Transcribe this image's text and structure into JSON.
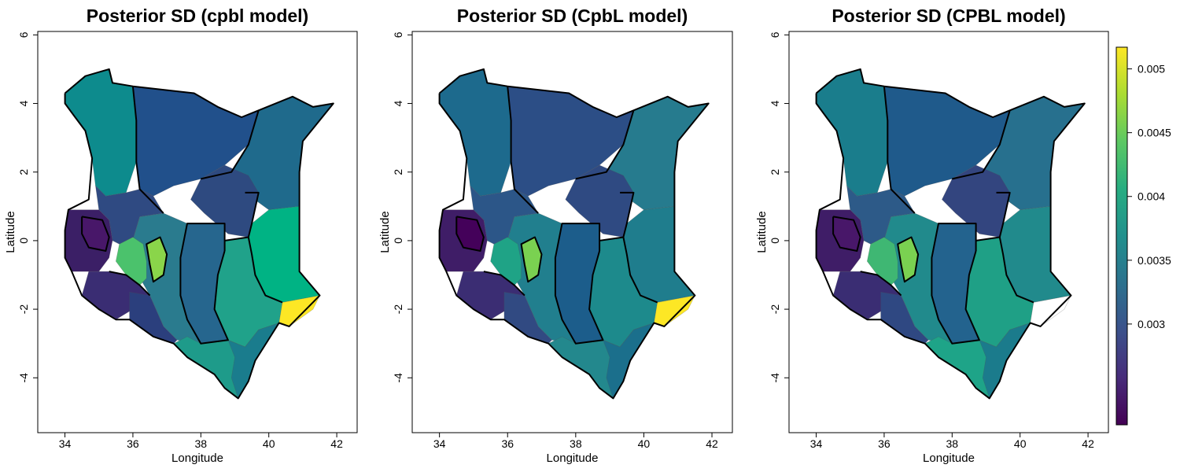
{
  "panels": [
    {
      "title": "Posterior SD (cpbl model)",
      "xlabel": "Longitude",
      "ylabel": "Latitude",
      "fills": {
        "north_west": "#0d8b8d",
        "north": "#21508b",
        "north_east": "#1f6a8c",
        "mid_east": "#2e4a80",
        "east_coast": "#00b384",
        "lamu": "#fde725",
        "south_east": "#20a28a",
        "east_central": "#26668e",
        "central_band": "#2a7b8e",
        "central_upper": "#4bc26c",
        "central_inner": "#8ad54a",
        "south_west": "#3a2d73",
        "south_rift": "#2b3f7d",
        "lake_basin": "#3b1f66",
        "lake_dark": "#481769",
        "south_coast": "#1e9b8a",
        "coast_strip": "#1a7c8d",
        "west_highlands": "#2f4a82"
      }
    },
    {
      "title": "Posterior SD (CpbL model)",
      "xlabel": "Longitude",
      "ylabel": "Latitude",
      "fills": {
        "north_west": "#1d6a8d",
        "north": "#2c4e86",
        "north_east": "#267b8e",
        "mid_east": "#2f4a82",
        "east_coast": "#1f7d8d",
        "lamu": "#fde725",
        "south_east": "#1d8a8c",
        "east_central": "#1c5d8b",
        "central_band": "#217f8e",
        "central_upper": "#1fa386",
        "central_inner": "#7ad151",
        "south_west": "#3b2d73",
        "south_rift": "#314a82",
        "lake_basin": "#3f1d67",
        "lake_dark": "#44015a",
        "south_coast": "#23888d",
        "coast_strip": "#1b6f8c",
        "west_highlands": "#2c5688"
      }
    },
    {
      "title": "Posterior SD (CPBL model)",
      "xlabel": "Longitude",
      "ylabel": "Latitude",
      "fills": {
        "north_west": "#1a7d8c",
        "north": "#1f5a8b",
        "north_east": "#27708e",
        "mid_east": "#33457f",
        "east_coast": "#218a8c",
        "lamu": "#ffffff",
        "south_east": "#1fa086",
        "east_central": "#23638e",
        "central_band": "#218a8c",
        "central_upper": "#3fb773",
        "central_inner": "#7ad151",
        "south_west": "#3a2d73",
        "south_rift": "#2f4882",
        "lake_basin": "#3f1d67",
        "lake_dark": "#481769",
        "south_coast": "#1ea488",
        "coast_strip": "#1b7b8c",
        "west_highlands": "#2d5a88"
      }
    }
  ],
  "axes": {
    "x_ticks": [
      "34",
      "36",
      "38",
      "40",
      "42"
    ],
    "y_ticks": [
      "6",
      "4",
      "2",
      "0",
      "-2",
      "-4"
    ],
    "xlim": [
      33.2,
      42.6
    ],
    "ylim": [
      -5.6,
      6.1
    ]
  },
  "colorbar": {
    "range": [
      0.00221,
      0.00517
    ],
    "ticks": [
      {
        "value": 0.003,
        "label": "0.003"
      },
      {
        "value": 0.0035,
        "label": "0.0035"
      },
      {
        "value": 0.004,
        "label": "0.004"
      },
      {
        "value": 0.0045,
        "label": "0.0045"
      },
      {
        "value": 0.005,
        "label": "0.005"
      }
    ],
    "palette": "viridis"
  }
}
